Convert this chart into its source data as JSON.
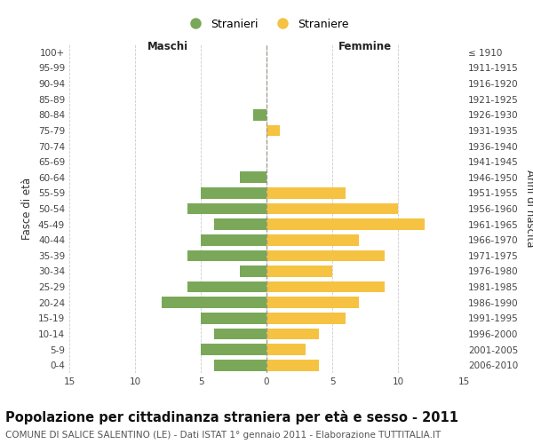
{
  "age_groups": [
    "0-4",
    "5-9",
    "10-14",
    "15-19",
    "20-24",
    "25-29",
    "30-34",
    "35-39",
    "40-44",
    "45-49",
    "50-54",
    "55-59",
    "60-64",
    "65-69",
    "70-74",
    "75-79",
    "80-84",
    "85-89",
    "90-94",
    "95-99",
    "100+"
  ],
  "birth_years": [
    "2006-2010",
    "2001-2005",
    "1996-2000",
    "1991-1995",
    "1986-1990",
    "1981-1985",
    "1976-1980",
    "1971-1975",
    "1966-1970",
    "1961-1965",
    "1956-1960",
    "1951-1955",
    "1946-1950",
    "1941-1945",
    "1936-1940",
    "1931-1935",
    "1926-1930",
    "1921-1925",
    "1916-1920",
    "1911-1915",
    "≤ 1910"
  ],
  "maschi": [
    4,
    5,
    4,
    5,
    8,
    6,
    2,
    6,
    5,
    4,
    6,
    5,
    2,
    0,
    0,
    0,
    1,
    0,
    0,
    0,
    0
  ],
  "femmine": [
    4,
    3,
    4,
    6,
    7,
    9,
    5,
    9,
    7,
    12,
    10,
    6,
    0,
    0,
    0,
    1,
    0,
    0,
    0,
    0,
    0
  ],
  "maschi_color": "#7aa858",
  "femmine_color": "#f5c242",
  "bar_height": 0.72,
  "xlim": 15,
  "title": "Popolazione per cittadinanza straniera per età e sesso - 2011",
  "subtitle": "COMUNE DI SALICE SALENTINO (LE) - Dati ISTAT 1° gennaio 2011 - Elaborazione TUTTITALIA.IT",
  "xlabel_left": "Maschi",
  "xlabel_right": "Femmine",
  "ylabel_left": "Fasce di età",
  "ylabel_right": "Anni di nascita",
  "legend_stranieri": "Stranieri",
  "legend_straniere": "Straniere",
  "bg_color": "#ffffff",
  "grid_color": "#cccccc",
  "tick_color": "#444444",
  "title_fontsize": 10.5,
  "subtitle_fontsize": 7.5,
  "axis_label_fontsize": 8.5,
  "tick_fontsize": 7.5,
  "legend_fontsize": 9
}
